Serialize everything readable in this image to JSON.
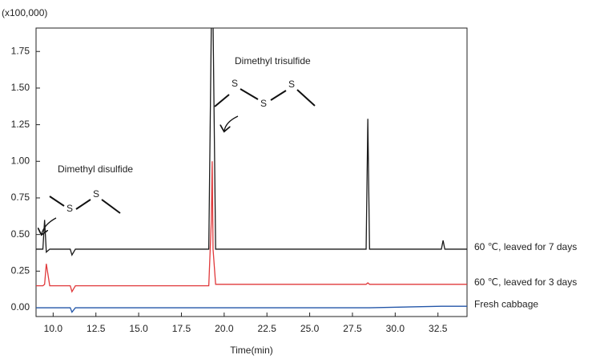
{
  "chart_data": {
    "type": "line",
    "unit_label": "(x100,000)",
    "xlabel": "Time(min)",
    "x": [
      9.0,
      9.4,
      9.5,
      9.6,
      9.8,
      11.0,
      11.1,
      11.3,
      19.1,
      19.25,
      19.3,
      19.35,
      19.5,
      28.3,
      28.4,
      28.5,
      32.7,
      32.8,
      32.9,
      34.2
    ],
    "series": [
      {
        "name": "60 ℃, leaved for 7 days",
        "color": "#1a1a1a",
        "values": [
          0.4,
          0.4,
          0.6,
          0.38,
          0.4,
          0.4,
          0.36,
          0.4,
          0.4,
          1.95,
          1.95,
          1.95,
          0.4,
          0.4,
          1.29,
          0.4,
          0.4,
          0.46,
          0.4,
          0.4
        ]
      },
      {
        "name": "60 ℃, leaved for 3 days",
        "color": "#e0393b",
        "values": [
          0.15,
          0.15,
          0.16,
          0.3,
          0.15,
          0.15,
          0.11,
          0.15,
          0.15,
          0.6,
          1.0,
          0.4,
          0.16,
          0.16,
          0.17,
          0.16,
          0.16,
          0.16,
          0.16,
          0.16
        ]
      },
      {
        "name": "Fresh cabbage",
        "color": "#2356a8",
        "values": [
          0.0,
          0.0,
          0.0,
          0.0,
          0.0,
          0.0,
          -0.03,
          0.0,
          0.0,
          0.0,
          0.0,
          0.0,
          0.0,
          0.0,
          0.0,
          0.0,
          0.01,
          0.01,
          0.01,
          0.01
        ]
      }
    ],
    "xlim": [
      9.0,
      34.2
    ],
    "ylim": [
      -0.06,
      1.91
    ],
    "xticks": [
      {
        "value": 10,
        "label": "10.0"
      },
      {
        "value": 12.5,
        "label": "12.5"
      },
      {
        "value": 15,
        "label": "15.0"
      },
      {
        "value": 17.5,
        "label": "17.5"
      },
      {
        "value": 20,
        "label": "20.0"
      },
      {
        "value": 22.5,
        "label": "22.5"
      },
      {
        "value": 25,
        "label": "25.0"
      },
      {
        "value": 27.5,
        "label": "27.5"
      },
      {
        "value": 30,
        "label": "30.0"
      },
      {
        "value": 32.5,
        "label": "32.5"
      }
    ],
    "yticks": [
      {
        "value": 0,
        "label": "0.00"
      },
      {
        "value": 0.25,
        "label": "0.25"
      },
      {
        "value": 0.5,
        "label": "0.50"
      },
      {
        "value": 0.75,
        "label": "0.75"
      },
      {
        "value": 1,
        "label": "1.00"
      },
      {
        "value": 1.25,
        "label": "1.25"
      },
      {
        "value": 1.5,
        "label": "1.50"
      },
      {
        "value": 1.75,
        "label": "1.75"
      }
    ],
    "structures": [
      {
        "label": "Dimethyl disulfide",
        "atoms": [
          "S",
          "S"
        ]
      },
      {
        "label": "Dimethyl trisulfide",
        "atoms": [
          "S",
          "S",
          "S"
        ]
      }
    ]
  }
}
